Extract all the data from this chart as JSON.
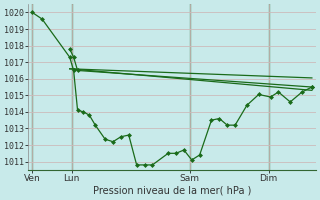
{
  "background_color": "#c8eaea",
  "grid_color": "#ccbbbb",
  "line_color": "#1a6b1a",
  "marker_color": "#1a6b1a",
  "title": "Pression niveau de la mer( hPa )",
  "ylim": [
    1010.5,
    1020.5
  ],
  "yticks": [
    1011,
    1012,
    1013,
    1014,
    1015,
    1016,
    1017,
    1018,
    1019,
    1020
  ],
  "xtick_labels": [
    "Ven",
    "Lun",
    "Sam",
    "Dim"
  ],
  "xtick_positions": [
    0.0,
    1.0,
    4.0,
    6.0
  ],
  "xlim": [
    -0.1,
    7.2
  ],
  "vline_color": "#336633",
  "series": [
    {
      "x": [
        0.0,
        0.25,
        0.95,
        1.05,
        1.15,
        1.3,
        1.45,
        1.6,
        1.85,
        2.05,
        2.25,
        2.45,
        2.65,
        2.85,
        3.05,
        3.45,
        3.65,
        3.85,
        4.05,
        4.25,
        4.55,
        4.75,
        4.95,
        5.15,
        5.45,
        5.75,
        6.05,
        6.25,
        6.55,
        6.85,
        7.1
      ],
      "y": [
        1020,
        1019.6,
        1017.3,
        1016.5,
        1014.1,
        1014.0,
        1013.8,
        1013.2,
        1012.35,
        1012.2,
        1012.5,
        1012.6,
        1010.8,
        1010.8,
        1010.8,
        1011.5,
        1011.5,
        1011.7,
        1011.1,
        1011.4,
        1013.5,
        1013.6,
        1013.2,
        1013.2,
        1014.4,
        1015.05,
        1014.9,
        1015.2,
        1014.6,
        1015.2,
        1015.5
      ],
      "marker": true
    },
    {
      "x": [
        0.95,
        1.05,
        1.15,
        7.1
      ],
      "y": [
        1017.8,
        1017.3,
        1016.5,
        1015.5
      ],
      "marker": true
    },
    {
      "x": [
        0.95,
        7.1
      ],
      "y": [
        1016.6,
        1016.05
      ],
      "marker": false
    },
    {
      "x": [
        0.95,
        7.1
      ],
      "y": [
        1016.6,
        1015.3
      ],
      "marker": false
    }
  ]
}
